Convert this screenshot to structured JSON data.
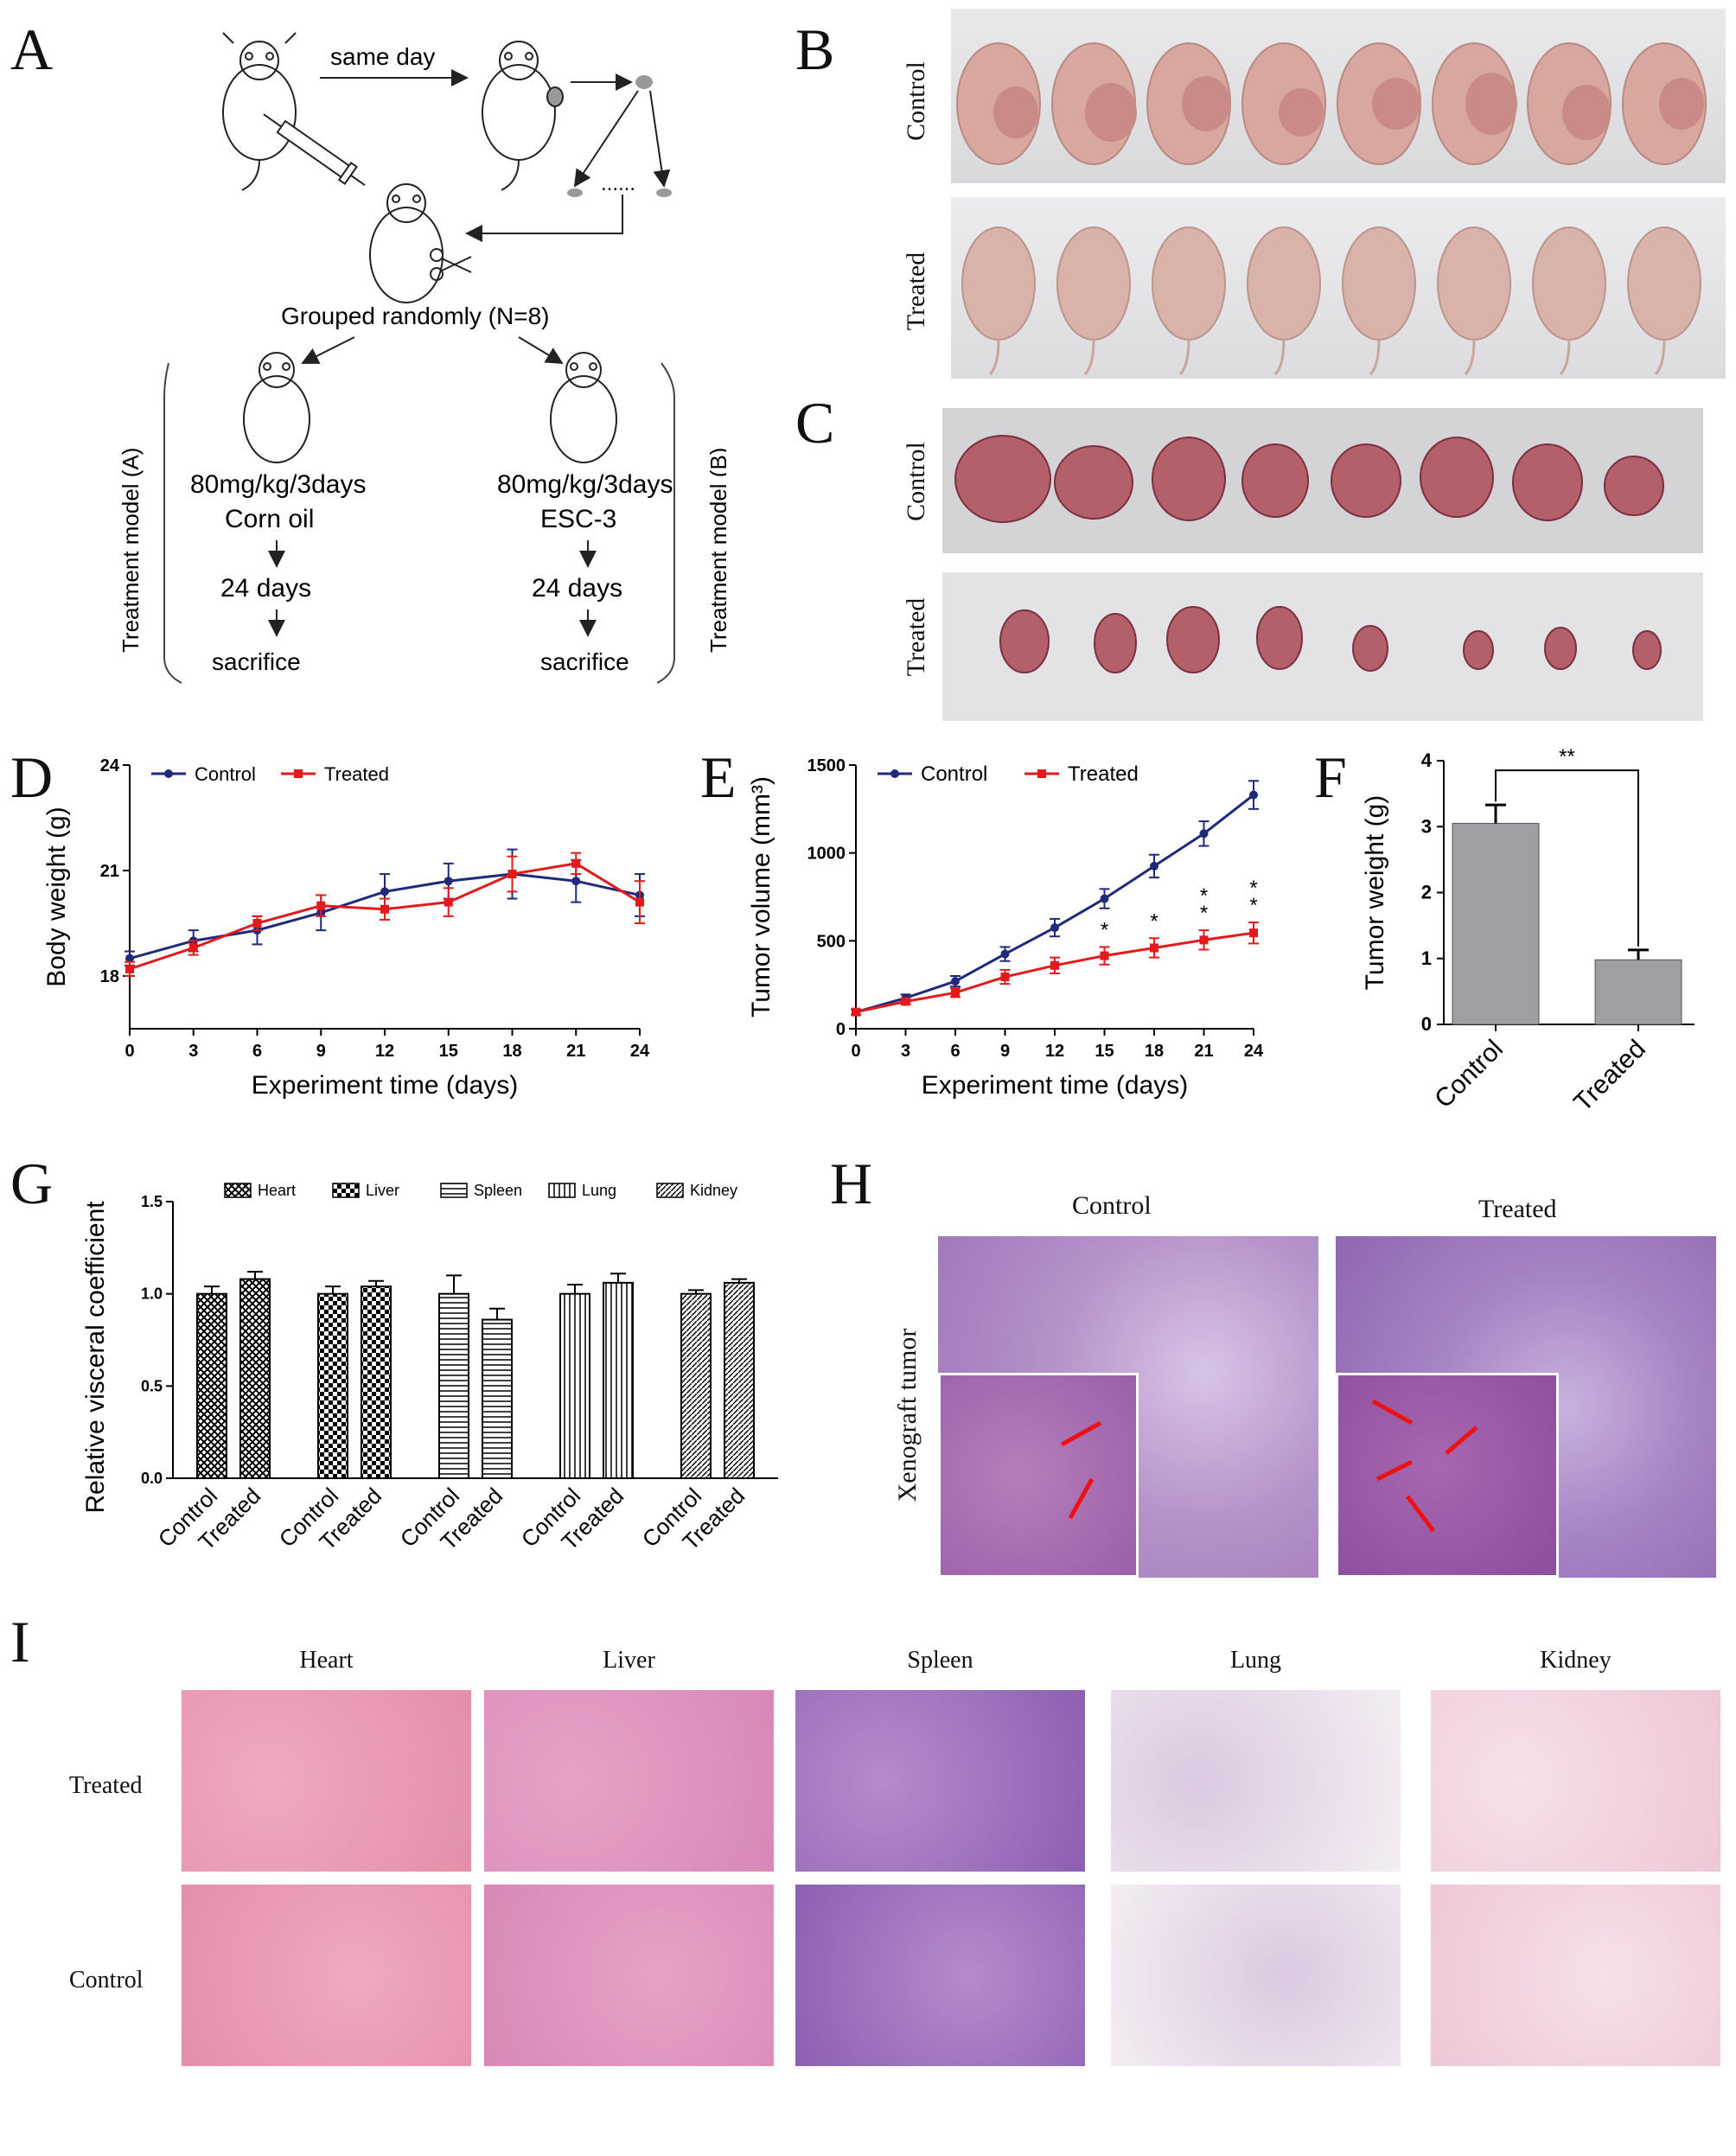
{
  "panels": {
    "A": "A",
    "B": "B",
    "C": "C",
    "D": "D",
    "E": "E",
    "F": "F",
    "G": "G",
    "H": "H",
    "I": "I"
  },
  "schematic": {
    "same_day": "same day",
    "grouped": "Grouped randomly (N=8)",
    "left_dose": "80mg/kg/3days",
    "left_agent": "Corn oil",
    "right_dose": "80mg/kg/3days",
    "right_agent": "ESC-3",
    "days": "24 days",
    "endpoint": "sacrifice",
    "left_model": "Treatment model (A)",
    "right_model": "Treatment model (B)",
    "dots": "......"
  },
  "photos": {
    "control": "Control",
    "treated": "Treated"
  },
  "histology_h": {
    "control": "Control",
    "treated": "Treated",
    "row_label": "Xenograft tumor"
  },
  "histology_i": {
    "columns": [
      "Heart",
      "Liver",
      "Spleen",
      "Lung",
      "Kidney"
    ],
    "rows": [
      "Treated",
      "Control"
    ]
  },
  "colors": {
    "control": "#1f2a7a",
    "treated": "#e31a1c",
    "bar_gray": "#9e9ea3",
    "he_pink": "#e9a7bf",
    "he_purple": "#8a5aa8"
  },
  "chart_data": [
    {
      "id": "D",
      "type": "line",
      "title": "",
      "xlabel": "Experiment time (days)",
      "ylabel": "Body weight (g)",
      "x": [
        0,
        3,
        6,
        9,
        12,
        15,
        18,
        21,
        24
      ],
      "xlim": [
        0,
        24
      ],
      "ylim": [
        16.5,
        24
      ],
      "yticks": [
        18,
        21,
        24
      ],
      "legend": "top-left",
      "series": [
        {
          "name": "Control",
          "values": [
            18.5,
            19.0,
            19.3,
            19.8,
            20.4,
            20.7,
            20.9,
            20.7,
            20.3
          ],
          "err": [
            0.2,
            0.3,
            0.4,
            0.5,
            0.5,
            0.5,
            0.7,
            0.6,
            0.6
          ]
        },
        {
          "name": "Treated",
          "values": [
            18.2,
            18.8,
            19.5,
            20.0,
            19.9,
            20.1,
            20.9,
            21.2,
            20.1
          ],
          "err": [
            0.2,
            0.2,
            0.2,
            0.3,
            0.3,
            0.4,
            0.5,
            0.3,
            0.6
          ]
        }
      ]
    },
    {
      "id": "E",
      "type": "line",
      "title": "",
      "xlabel": "Experiment time (days)",
      "ylabel": "Tumor volume (mm³)",
      "x": [
        0,
        3,
        6,
        9,
        12,
        15,
        18,
        21,
        24
      ],
      "xlim": [
        0,
        24
      ],
      "ylim": [
        0,
        1500
      ],
      "yticks": [
        0,
        500,
        1000,
        1500
      ],
      "legend": "top-left",
      "series": [
        {
          "name": "Control",
          "values": [
            95,
            175,
            270,
            425,
            575,
            740,
            925,
            1110,
            1330
          ],
          "err": [
            15,
            20,
            30,
            40,
            50,
            55,
            65,
            70,
            80
          ]
        },
        {
          "name": "Treated",
          "values": [
            95,
            155,
            205,
            295,
            360,
            415,
            460,
            505,
            545
          ],
          "err": [
            15,
            15,
            25,
            40,
            45,
            50,
            55,
            55,
            60
          ]
        }
      ],
      "significance": [
        {
          "x": 15,
          "mark": "*"
        },
        {
          "x": 18,
          "mark": "*"
        },
        {
          "x": 21,
          "mark": "**"
        },
        {
          "x": 24,
          "mark": "**"
        }
      ]
    },
    {
      "id": "F",
      "type": "bar",
      "title": "",
      "xlabel": "",
      "ylabel": "Tumor weight (g)",
      "categories": [
        "Control",
        "Treated"
      ],
      "values": [
        3.05,
        0.98
      ],
      "err": [
        0.28,
        0.15
      ],
      "ylim": [
        0,
        4
      ],
      "yticks": [
        0,
        1,
        2,
        3,
        4
      ],
      "significance": "**"
    },
    {
      "id": "G",
      "type": "bar",
      "title": "",
      "xlabel": "",
      "ylabel": "Relative visceral coefficient",
      "groups": [
        "Heart",
        "Liver",
        "Spleen",
        "Lung",
        "Kidney"
      ],
      "categories": [
        "Control",
        "Treated"
      ],
      "ylim": [
        0,
        1.5
      ],
      "yticks": [
        "0.0",
        "0.5",
        "1.0",
        "1.5"
      ],
      "legend": "top",
      "series": [
        {
          "name": "Heart",
          "values": [
            1.0,
            1.08
          ],
          "err": [
            0.04,
            0.04
          ]
        },
        {
          "name": "Liver",
          "values": [
            1.0,
            1.04
          ],
          "err": [
            0.04,
            0.03
          ]
        },
        {
          "name": "Spleen",
          "values": [
            1.0,
            0.86
          ],
          "err": [
            0.1,
            0.06
          ]
        },
        {
          "name": "Lung",
          "values": [
            1.0,
            1.06
          ],
          "err": [
            0.05,
            0.05
          ]
        },
        {
          "name": "Kidney",
          "values": [
            1.0,
            1.06
          ],
          "err": [
            0.02,
            0.02
          ]
        }
      ]
    }
  ]
}
